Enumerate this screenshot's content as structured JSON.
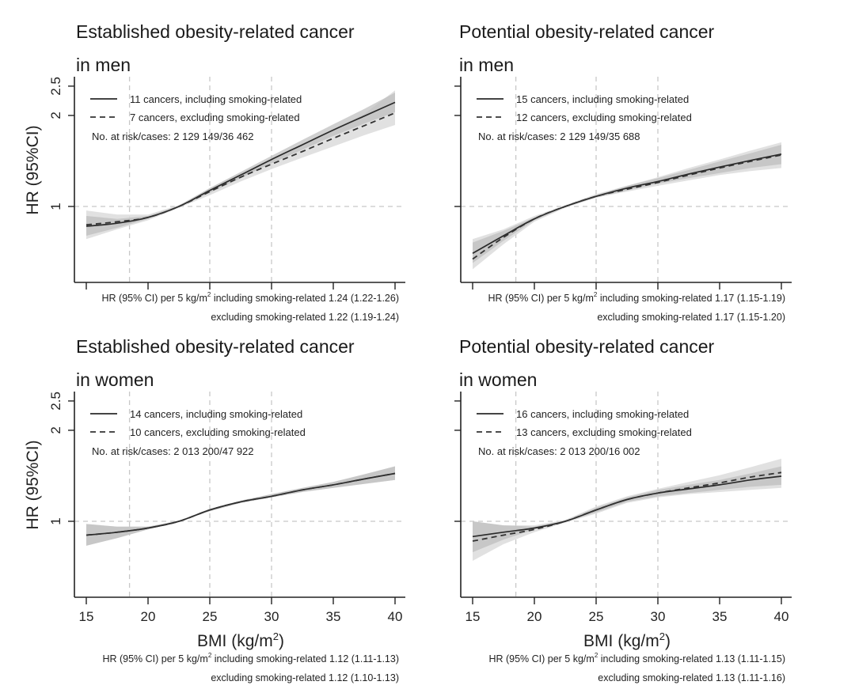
{
  "figure": {
    "y_axis_label": "HR (95%CI)",
    "x_axis_label": "BMI (kg/m²)",
    "footnote_prefix": "HR (95% CI) per 5 kg/m²"
  },
  "chart_data": [
    {
      "type": "line",
      "title": "Established obesity-related cancer in men",
      "title_lines": [
        "Established obesity-related cancer",
        "in men"
      ],
      "xlabel": "",
      "ylabel": "HR (95%CI)",
      "y_scale": "log",
      "xlim": [
        15,
        40
      ],
      "ylim": [
        0.56,
        2.6
      ],
      "x_ticks": [
        15,
        20,
        25,
        30,
        35,
        40
      ],
      "y_ticks": [
        1,
        2,
        2.5
      ],
      "y_tick_labels": [
        "1",
        "2",
        "2.5"
      ],
      "reference_lines": {
        "y": 1,
        "x": [
          18.5,
          25,
          30
        ]
      },
      "legend_position": "top-left",
      "at_risk_text": "No. at risk/cases: 2 129 149/36 462",
      "footnote": [
        "HR (95% CI) per 5 kg/m² including smoking-related 1.24 (1.22-1.26)",
        "excluding smoking-related 1.22 (1.19-1.24)"
      ],
      "x": [
        15,
        17.5,
        20,
        22.5,
        25,
        27.5,
        30,
        32.5,
        35,
        37.5,
        40
      ],
      "series": [
        {
          "name": "11 cancers, including smoking-related",
          "style": "solid",
          "values": [
            0.86,
            0.88,
            0.92,
            1.0,
            1.13,
            1.27,
            1.43,
            1.6,
            1.79,
            1.99,
            2.21
          ],
          "ci_lower": [
            0.8,
            0.85,
            0.91,
            0.995,
            1.11,
            1.24,
            1.39,
            1.54,
            1.71,
            1.88,
            2.05
          ],
          "ci_upper": [
            0.93,
            0.91,
            0.93,
            1.005,
            1.15,
            1.3,
            1.47,
            1.66,
            1.87,
            2.1,
            2.38
          ]
        },
        {
          "name": "7 cancers, excluding smoking-related",
          "style": "dashed",
          "values": [
            0.87,
            0.89,
            0.92,
            1.0,
            1.12,
            1.25,
            1.38,
            1.52,
            1.68,
            1.85,
            2.04
          ],
          "ci_lower": [
            0.78,
            0.84,
            0.9,
            0.99,
            1.09,
            1.21,
            1.33,
            1.45,
            1.58,
            1.72,
            1.86
          ],
          "ci_upper": [
            0.97,
            0.94,
            0.94,
            1.01,
            1.15,
            1.29,
            1.44,
            1.61,
            1.8,
            2.02,
            2.42
          ]
        }
      ]
    },
    {
      "type": "line",
      "title": "Potential obesity-related cancer in men",
      "title_lines": [
        "Potential obesity-related cancer",
        "in men"
      ],
      "xlabel": "",
      "ylabel": "",
      "y_scale": "log",
      "xlim": [
        15,
        40
      ],
      "ylim": [
        0.56,
        2.6
      ],
      "x_ticks": [
        15,
        20,
        25,
        30,
        35,
        40
      ],
      "y_ticks": [
        1,
        2,
        2.5
      ],
      "y_tick_labels": [
        "",
        "",
        ""
      ],
      "reference_lines": {
        "y": 1,
        "x": [
          18.5,
          25,
          30
        ]
      },
      "legend_position": "top-left",
      "at_risk_text": "No. at risk/cases: 2 129 149/35 688",
      "footnote": [
        "HR (95% CI) per 5 kg/m² including smoking-related 1.17 (1.15-1.19)",
        "excluding smoking-related 1.17 (1.15-1.20)"
      ],
      "x": [
        15,
        17.5,
        20,
        22.5,
        25,
        27.5,
        30,
        32.5,
        35,
        37.5,
        40
      ],
      "series": [
        {
          "name": "15 cancers, including smoking-related",
          "style": "solid",
          "values": [
            0.7,
            0.8,
            0.91,
            1.0,
            1.08,
            1.15,
            1.21,
            1.28,
            1.35,
            1.42,
            1.49
          ],
          "ci_lower": [
            0.65,
            0.77,
            0.9,
            0.995,
            1.07,
            1.13,
            1.19,
            1.24,
            1.29,
            1.34,
            1.38
          ],
          "ci_upper": [
            0.76,
            0.83,
            0.92,
            1.005,
            1.09,
            1.17,
            1.24,
            1.32,
            1.41,
            1.5,
            1.6
          ]
        },
        {
          "name": "12 cancers, excluding smoking-related",
          "style": "dashed",
          "values": [
            0.67,
            0.79,
            0.91,
            1.0,
            1.08,
            1.14,
            1.2,
            1.27,
            1.34,
            1.41,
            1.48
          ],
          "ci_lower": [
            0.62,
            0.75,
            0.89,
            0.99,
            1.07,
            1.12,
            1.17,
            1.22,
            1.27,
            1.31,
            1.34
          ],
          "ci_upper": [
            0.78,
            0.84,
            0.93,
            1.01,
            1.1,
            1.17,
            1.25,
            1.34,
            1.43,
            1.53,
            1.63
          ]
        }
      ]
    },
    {
      "type": "line",
      "title": "Established obesity-related cancer in women",
      "title_lines": [
        "Established obesity-related cancer",
        "in women"
      ],
      "xlabel": "BMI (kg/m²)",
      "ylabel": "HR (95%CI)",
      "y_scale": "log",
      "xlim": [
        15,
        40
      ],
      "ylim": [
        0.56,
        2.6
      ],
      "x_ticks": [
        15,
        20,
        25,
        30,
        35,
        40
      ],
      "x_tick_labels": [
        "15",
        "20",
        "25",
        "30",
        "35",
        "40"
      ],
      "y_ticks": [
        1,
        2,
        2.5
      ],
      "y_tick_labels": [
        "1",
        "2",
        "2.5"
      ],
      "reference_lines": {
        "y": 1,
        "x": [
          18.5,
          25,
          30
        ]
      },
      "legend_position": "top-left",
      "at_risk_text": "No. at risk/cases: 2 013 200/47 922",
      "footnote": [
        "HR (95% CI) per 5 kg/m² including smoking-related 1.12 (1.11-1.13)",
        "excluding smoking-related 1.12 (1.10-1.13)"
      ],
      "x": [
        15,
        17.5,
        20,
        22.5,
        25,
        27.5,
        30,
        32.5,
        35,
        37.5,
        40
      ],
      "series": [
        {
          "name": "14 cancers, including smoking-related",
          "style": "solid",
          "values": [
            0.9,
            0.92,
            0.95,
            1.0,
            1.09,
            1.16,
            1.21,
            1.27,
            1.32,
            1.38,
            1.44
          ],
          "ci_lower": [
            0.83,
            0.88,
            0.94,
            0.995,
            1.08,
            1.15,
            1.2,
            1.25,
            1.29,
            1.33,
            1.37
          ],
          "ci_upper": [
            0.98,
            0.96,
            0.96,
            1.005,
            1.1,
            1.17,
            1.23,
            1.29,
            1.35,
            1.43,
            1.52
          ]
        },
        {
          "name": "10 cancers, excluding smoking-related",
          "style": "dashed",
          "values": [
            0.9,
            0.92,
            0.95,
            1.0,
            1.09,
            1.16,
            1.21,
            1.27,
            1.32,
            1.38,
            1.44
          ],
          "ci_lower": [
            0.83,
            0.88,
            0.94,
            0.995,
            1.08,
            1.15,
            1.2,
            1.25,
            1.29,
            1.33,
            1.37
          ],
          "ci_upper": [
            0.98,
            0.96,
            0.96,
            1.005,
            1.1,
            1.17,
            1.23,
            1.29,
            1.35,
            1.43,
            1.52
          ]
        }
      ]
    },
    {
      "type": "line",
      "title": "Potential obesity-related cancer in women",
      "title_lines": [
        "Potential obesity-related cancer",
        "in women"
      ],
      "xlabel": "BMI (kg/m²)",
      "ylabel": "",
      "y_scale": "log",
      "xlim": [
        15,
        40
      ],
      "ylim": [
        0.56,
        2.6
      ],
      "x_ticks": [
        15,
        20,
        25,
        30,
        35,
        40
      ],
      "x_tick_labels": [
        "15",
        "20",
        "25",
        "30",
        "35",
        "40"
      ],
      "y_ticks": [
        1,
        2,
        2.5
      ],
      "y_tick_labels": [
        "",
        "",
        ""
      ],
      "reference_lines": {
        "y": 1,
        "x": [
          18.5,
          25,
          30
        ]
      },
      "legend_position": "top-left",
      "at_risk_text": "No. at risk/cases: 2 013 200/16 002",
      "footnote": [
        "HR (95% CI) per 5 kg/m² including smoking-related 1.13 (1.11-1.15)",
        "excluding smoking-related 1.13 (1.11-1.16)"
      ],
      "x": [
        15,
        17.5,
        20,
        22.5,
        25,
        27.5,
        30,
        32.5,
        35,
        37.5,
        40
      ],
      "series": [
        {
          "name": "16 cancers, including smoking-related",
          "style": "solid",
          "values": [
            0.89,
            0.92,
            0.95,
            1.0,
            1.09,
            1.18,
            1.24,
            1.28,
            1.32,
            1.37,
            1.41
          ],
          "ci_lower": [
            0.79,
            0.87,
            0.94,
            0.995,
            1.07,
            1.16,
            1.21,
            1.24,
            1.27,
            1.3,
            1.32
          ],
          "ci_upper": [
            1.0,
            0.97,
            0.96,
            1.005,
            1.11,
            1.2,
            1.27,
            1.32,
            1.37,
            1.44,
            1.52
          ]
        },
        {
          "name": "13 cancers, excluding smoking-related",
          "style": "dashed",
          "values": [
            0.86,
            0.9,
            0.94,
            1.0,
            1.09,
            1.18,
            1.24,
            1.29,
            1.34,
            1.4,
            1.45
          ],
          "ci_lower": [
            0.74,
            0.84,
            0.92,
            0.99,
            1.06,
            1.15,
            1.2,
            1.23,
            1.25,
            1.27,
            1.29
          ],
          "ci_upper": [
            1.0,
            0.97,
            0.97,
            1.01,
            1.12,
            1.21,
            1.28,
            1.35,
            1.42,
            1.51,
            1.61
          ]
        }
      ]
    }
  ]
}
